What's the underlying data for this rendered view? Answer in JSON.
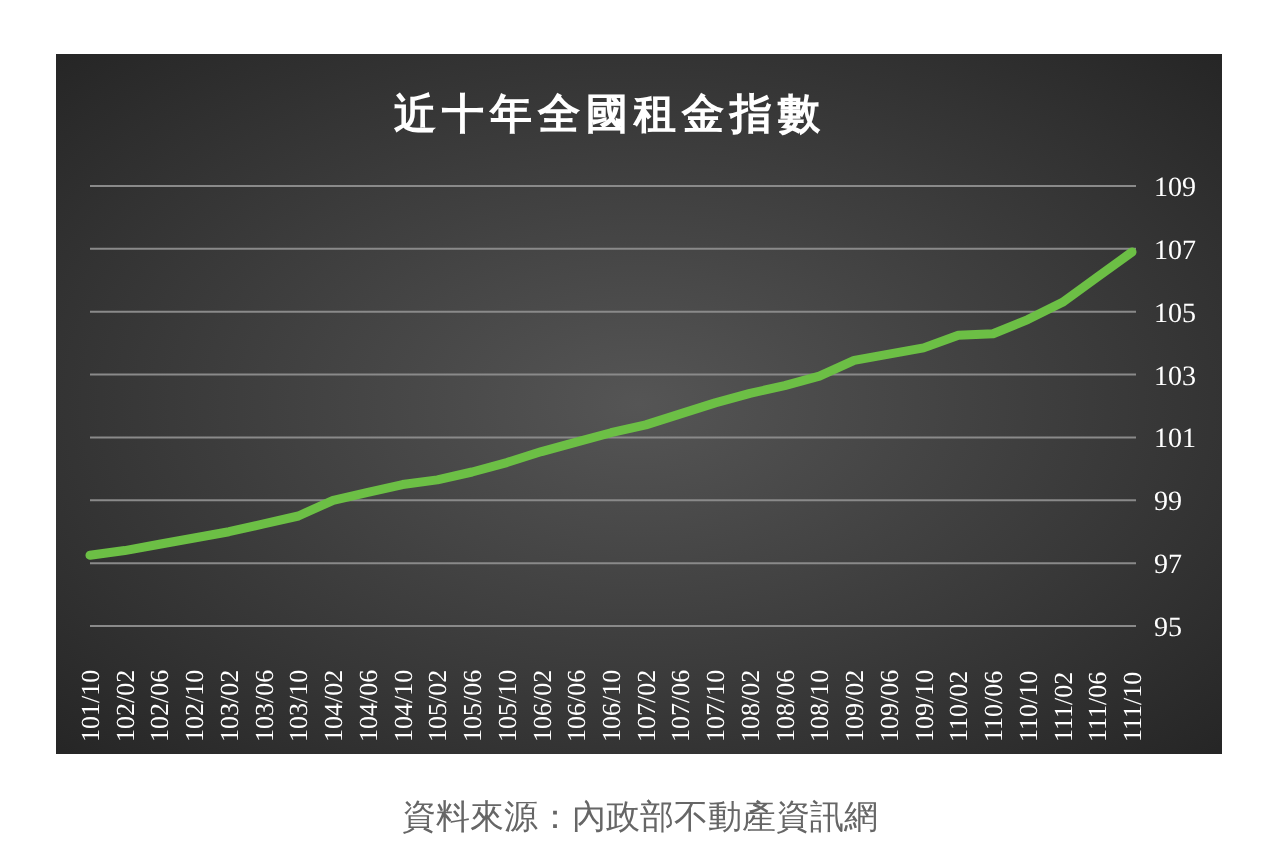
{
  "chart_data": {
    "type": "line",
    "title": "近十年全國租金指數",
    "categories": [
      "101/10",
      "102/02",
      "102/06",
      "102/10",
      "103/02",
      "103/06",
      "103/10",
      "104/02",
      "104/06",
      "104/10",
      "105/02",
      "105/06",
      "105/10",
      "106/02",
      "106/06",
      "106/10",
      "107/02",
      "107/06",
      "107/10",
      "108/02",
      "108/06",
      "108/10",
      "109/02",
      "109/06",
      "109/10",
      "110/02",
      "110/06",
      "110/10",
      "111/02",
      "111/06",
      "111/10"
    ],
    "values": [
      97.25,
      97.4,
      97.6,
      97.8,
      98.0,
      98.25,
      98.5,
      99.0,
      99.25,
      99.5,
      99.65,
      99.9,
      100.2,
      100.55,
      100.85,
      101.15,
      101.4,
      101.75,
      102.1,
      102.4,
      102.65,
      102.95,
      103.45,
      103.65,
      103.85,
      104.25,
      104.3,
      104.75,
      105.3,
      106.1,
      106.9
    ],
    "color": "#6cbf45",
    "ylim": [
      95,
      109
    ],
    "yticks": [
      95,
      97,
      99,
      101,
      103,
      105,
      107,
      109
    ],
    "grid": "y",
    "legend": false,
    "annotations": [
      "資料來源：內政部不動產資訊網"
    ]
  }
}
